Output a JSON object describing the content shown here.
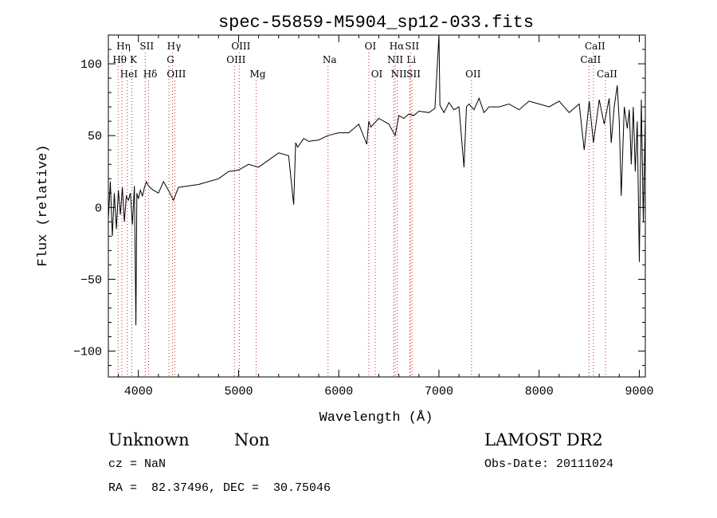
{
  "chart_data": {
    "type": "line",
    "title": "spec-55859-M5904_sp12-033.fits",
    "xlabel": "Wavelength (Å)",
    "ylabel": "Flux (relative)",
    "xlim": [
      3700,
      9060
    ],
    "ylim": [
      -118,
      120
    ],
    "xticks": [
      4000,
      5000,
      6000,
      7000,
      8000,
      9000
    ],
    "yticks": [
      -100,
      -50,
      0,
      50,
      100
    ],
    "grid": false,
    "line_color": "#000000",
    "marker_color": "#cc2222",
    "series": [
      {
        "values_x": [
          3700,
          3720,
          3740,
          3760,
          3780,
          3800,
          3820,
          3840,
          3860,
          3880,
          3900,
          3920,
          3940,
          3960,
          3975,
          3985,
          4000,
          4020,
          4040,
          4060,
          4080,
          4100,
          4150,
          4200,
          4250,
          4300,
          4350,
          4400,
          4500,
          4600,
          4700,
          4800,
          4900,
          5000,
          5100,
          5200,
          5300,
          5400,
          5500,
          5550,
          5570,
          5590,
          5650,
          5700,
          5800,
          5890,
          6000,
          6100,
          6200,
          6280,
          6300,
          6320,
          6400,
          6500,
          6563,
          6600,
          6650,
          6700,
          6750,
          6800,
          6900,
          6960,
          7000,
          7010,
          7050,
          7100,
          7150,
          7200,
          7250,
          7275,
          7300,
          7350,
          7400,
          7450,
          7500,
          7600,
          7700,
          7800,
          7900,
          8000,
          8100,
          8200,
          8300,
          8400,
          8450,
          8500,
          8542,
          8600,
          8650,
          8700,
          8720,
          8750,
          8780,
          8800,
          8820,
          8850,
          8880,
          8900,
          8920,
          8940,
          8960,
          8980,
          9000,
          9020,
          9040,
          9060
        ],
        "values_y": [
          -8,
          18,
          -20,
          10,
          -15,
          12,
          -5,
          14,
          -10,
          8,
          5,
          10,
          -12,
          15,
          -82,
          10,
          6,
          12,
          8,
          14,
          18,
          15,
          12,
          10,
          18,
          12,
          5,
          14,
          15,
          16,
          18,
          20,
          25,
          26,
          30,
          28,
          33,
          38,
          36,
          2,
          45,
          42,
          48,
          46,
          47,
          50,
          52,
          52,
          58,
          44,
          60,
          56,
          62,
          58,
          50,
          64,
          62,
          65,
          64,
          67,
          66,
          69,
          130,
          71,
          66,
          73,
          68,
          70,
          28,
          70,
          72,
          68,
          76,
          66,
          70,
          70,
          72,
          68,
          74,
          72,
          70,
          74,
          66,
          72,
          40,
          74,
          45,
          75,
          58,
          76,
          45,
          70,
          85,
          60,
          8,
          70,
          55,
          68,
          30,
          70,
          25,
          60,
          -38,
          75,
          -10,
          64
        ]
      }
    ],
    "line_markers": [
      {
        "label": "Hη",
        "x": 3835,
        "row": 1
      },
      {
        "label": "Hθ",
        "x": 3797,
        "row": 2
      },
      {
        "label": "K",
        "x": 3934,
        "row": 2
      },
      {
        "label": "HeI",
        "x": 3889,
        "row": 3
      },
      {
        "label": "SII",
        "x": 4068,
        "row": 1
      },
      {
        "label": "Hδ",
        "x": 4102,
        "row": 3
      },
      {
        "label": "Hγ",
        "x": 4340,
        "row": 1
      },
      {
        "label": "G",
        "x": 4305,
        "row": 2
      },
      {
        "label": "OIII",
        "x": 4363,
        "row": 3
      },
      {
        "label": "OIII",
        "x": 5007,
        "row": 1
      },
      {
        "label": "OIII",
        "x": 4959,
        "row": 2
      },
      {
        "label": "Mg",
        "x": 5175,
        "row": 3
      },
      {
        "label": "Na",
        "x": 5893,
        "row": 2
      },
      {
        "label": "OI",
        "x": 6300,
        "row": 1
      },
      {
        "label": "OI",
        "x": 6364,
        "row": 3
      },
      {
        "label": "Hα",
        "x": 6563,
        "row": 1
      },
      {
        "label": "SII",
        "x": 6716,
        "row": 1
      },
      {
        "label": "NII",
        "x": 6548,
        "row": 2
      },
      {
        "label": "Li",
        "x": 6708,
        "row": 2
      },
      {
        "label": "NII",
        "x": 6584,
        "row": 3
      },
      {
        "label": "SII",
        "x": 6731,
        "row": 3
      },
      {
        "label": "OII",
        "x": 7325,
        "row": 3
      },
      {
        "label": "CaII",
        "x": 8542,
        "row": 1
      },
      {
        "label": "CaII",
        "x": 8498,
        "row": 2
      },
      {
        "label": "CaII",
        "x": 8662,
        "row": 3
      }
    ]
  },
  "info": {
    "class_label": "Unknown",
    "subclass_label": "Non",
    "survey": "LAMOST DR2",
    "redshift_text": "cz = NaN",
    "obs_date_text": "Obs-Date: 20111024",
    "coords_text": "RA =  82.37496, DEC =  30.75046"
  }
}
